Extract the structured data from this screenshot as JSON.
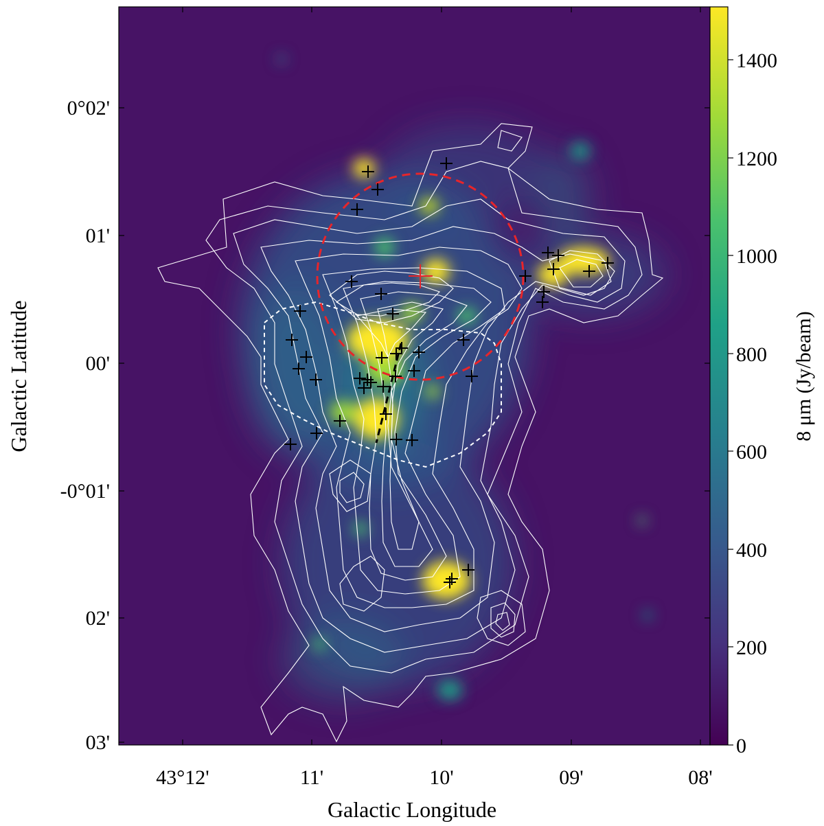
{
  "figure": {
    "xlabel": "Galactic Longitude",
    "ylabel": "Galactic Latitude",
    "colorbar_label": "8 μm (Jy/beam)"
  },
  "axes": {
    "x_ticks": [
      "43°12'",
      "11'",
      "10'",
      "09'",
      "08'"
    ],
    "y_ticks": [
      "0°02'",
      "01'",
      "00'",
      "-0°01'",
      "02'",
      "03'"
    ]
  },
  "colorbar": {
    "ticks": [
      "0",
      "200",
      "400",
      "600",
      "800",
      "1000",
      "1200",
      "1400"
    ],
    "range": [
      0,
      1500
    ],
    "colormap": "viridis",
    "colors": [
      "#440154",
      "#46327e",
      "#365c8d",
      "#277f8e",
      "#1fa187",
      "#4ac16d",
      "#a0da39",
      "#fde725"
    ]
  },
  "colors": {
    "background": "#471365",
    "contours": "#ffffff",
    "circle": "#e8252a",
    "dashed_region": "#ffffff",
    "filament_line": "#000000",
    "markers": "#000000",
    "center_marker": "#e8252a"
  }
}
